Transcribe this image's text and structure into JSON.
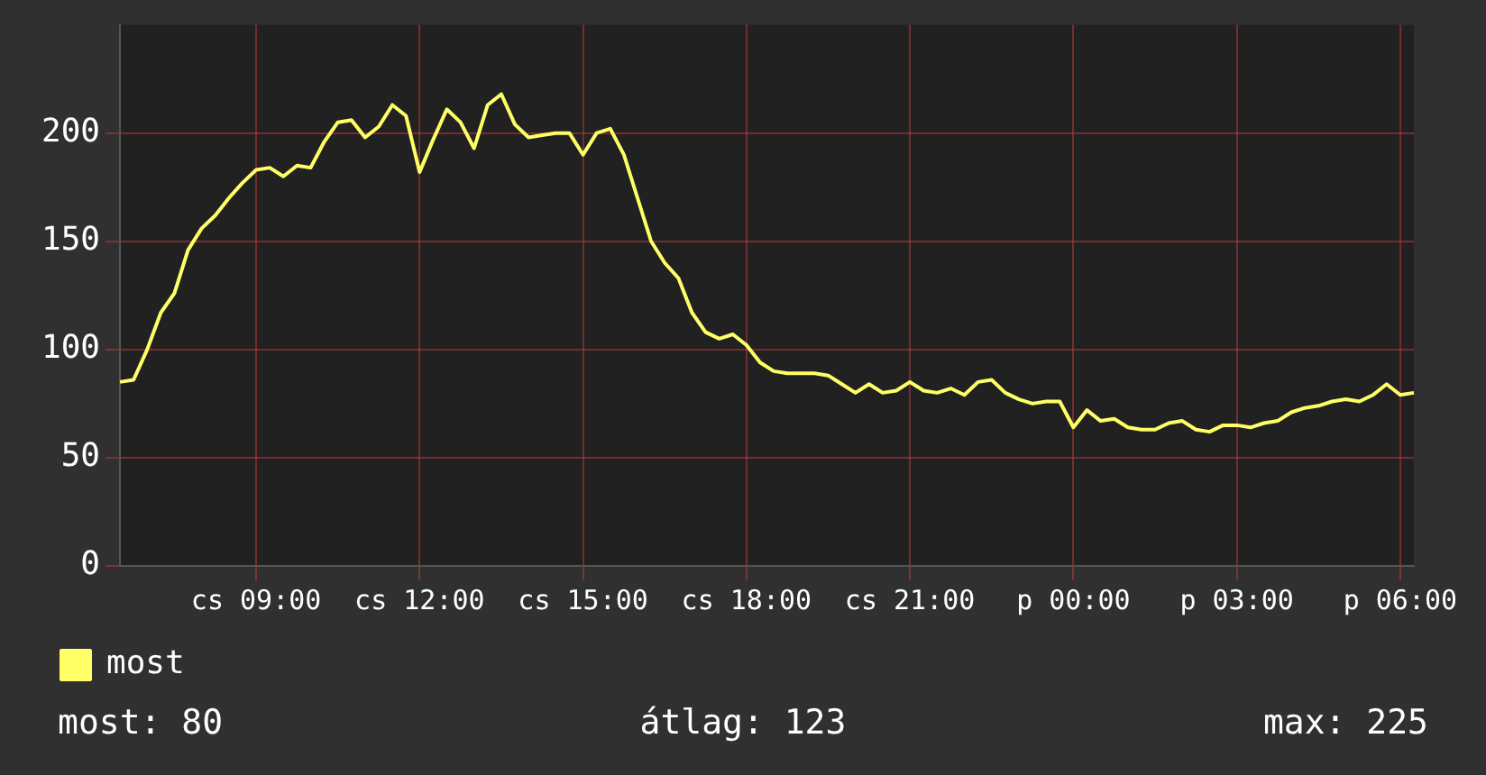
{
  "chart_data": {
    "type": "line",
    "categories": [
      null,
      null,
      null,
      null,
      null,
      null,
      null,
      null,
      null,
      null,
      "cs 09:00",
      null,
      null,
      null,
      null,
      null,
      null,
      null,
      null,
      null,
      null,
      null,
      "cs 12:00",
      null,
      null,
      null,
      null,
      null,
      null,
      null,
      null,
      null,
      null,
      null,
      "cs 15:00",
      null,
      null,
      null,
      null,
      null,
      null,
      null,
      null,
      null,
      null,
      null,
      "cs 18:00",
      null,
      null,
      null,
      null,
      null,
      null,
      null,
      null,
      null,
      null,
      null,
      "cs 21:00",
      null,
      null,
      null,
      null,
      null,
      null,
      null,
      null,
      null,
      null,
      null,
      "p 00:00",
      null,
      null,
      null,
      null,
      null,
      null,
      null,
      null,
      null,
      null,
      null,
      "p 03:00",
      null,
      null,
      null,
      null,
      null,
      null,
      null,
      null,
      null,
      null,
      null,
      "p 06:00",
      null
    ],
    "ylim": [
      0,
      250
    ],
    "yticks": [
      0,
      50,
      100,
      150,
      200
    ],
    "grid": true,
    "legend": "bottom",
    "marker": "none",
    "annotations": [
      "most: 80",
      "átlag: 123",
      "max: 225"
    ],
    "series": [
      {
        "name": "most",
        "color": "#ffff66",
        "values": [
          85,
          86,
          100,
          117,
          126,
          146,
          156,
          162,
          170,
          177,
          183,
          184,
          180,
          185,
          184,
          196,
          205,
          206,
          198,
          203,
          213,
          208,
          182,
          197,
          211,
          205,
          193,
          213,
          218,
          204,
          198,
          199,
          200,
          200,
          190,
          200,
          202,
          190,
          170,
          150,
          140,
          133,
          117,
          108,
          105,
          107,
          102,
          94,
          90,
          89,
          89,
          89,
          88,
          84,
          80,
          84,
          80,
          81,
          85,
          81,
          80,
          82,
          79,
          85,
          86,
          80,
          77,
          75,
          76,
          76,
          64,
          72,
          67,
          68,
          64,
          63,
          63,
          66,
          67,
          63,
          62,
          65,
          65,
          64,
          66,
          67,
          71,
          73,
          74,
          76,
          77,
          76,
          79,
          84,
          79,
          80
        ]
      }
    ]
  }
}
